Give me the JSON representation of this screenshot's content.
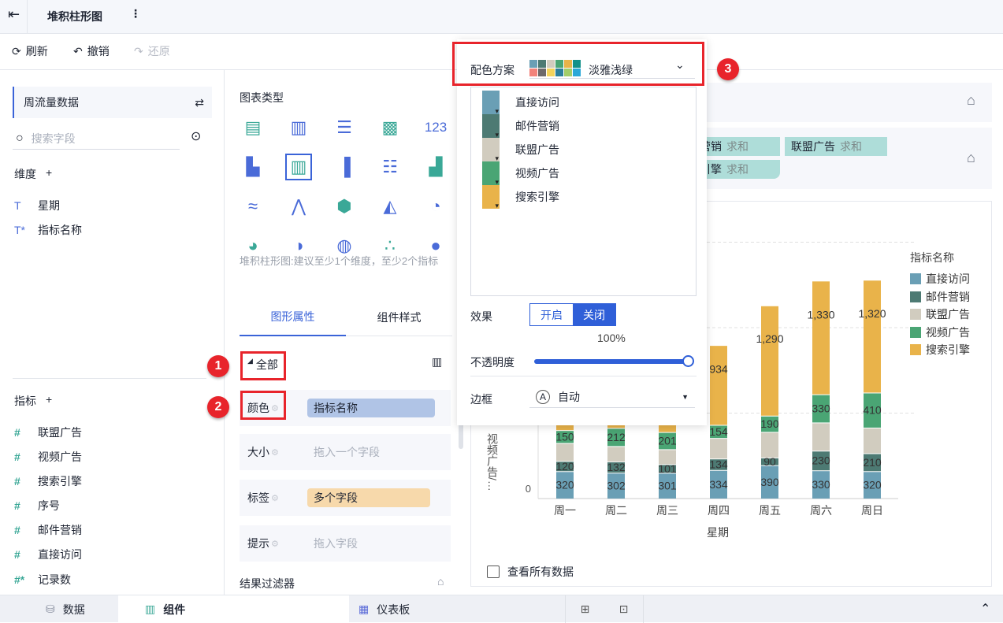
{
  "header": {
    "title": "堆积柱形图"
  },
  "toolbar": {
    "refresh": "刷新",
    "undo": "撤销",
    "redo": "还原"
  },
  "left": {
    "dataset": "周流量数据",
    "search_placeholder": "搜索字段",
    "dimensions_label": "维度",
    "dimensions": [
      "星期",
      "指标名称"
    ],
    "measures_label": "指标",
    "measures": [
      "联盟广告",
      "视频广告",
      "搜索引擎",
      "序号",
      "邮件营销",
      "直接访问",
      "记录数"
    ]
  },
  "middle": {
    "chart_type_label": "图表类型",
    "hint": "堆积柱形图:建议至少1个维度，至少2个指标",
    "tabs": [
      "图形属性",
      "组件样式"
    ],
    "all_label": "全部",
    "rows": [
      {
        "label": "颜色",
        "value": "指标名称"
      },
      {
        "label": "大小",
        "placeholder": "拖入一个字段"
      },
      {
        "label": "标签",
        "value": "多个字段"
      },
      {
        "label": "提示",
        "placeholder": "拖入字段"
      }
    ],
    "filter_label": "结果过滤器"
  },
  "badges": [
    "1",
    "2",
    "3"
  ],
  "axis_chips": [
    {
      "name": "营销",
      "agg": "求和"
    },
    {
      "name": "联盟广告",
      "agg": "求和"
    },
    {
      "name": "引擎",
      "agg": "求和"
    }
  ],
  "popup": {
    "scheme_label": "配色方案",
    "scheme_value": "淡雅浅绿",
    "scheme_colors": [
      "#6a9fb5",
      "#4d7a73",
      "#d1ccbf",
      "#4aa574",
      "#e9b34a",
      "#14918a",
      "#f2837b",
      "#6e6a6b",
      "#f3d35c",
      "#2b7f9c",
      "#a2cd69",
      "#2aa8d8"
    ],
    "items": [
      "直接访问",
      "邮件营销",
      "联盟广告",
      "视频广告",
      "搜索引擎"
    ],
    "effect_label": "效果",
    "effect_on": "开启",
    "effect_off": "关闭",
    "effect_selected": "关闭",
    "opacity_label": "不透明度",
    "opacity_value": "100%",
    "opacity": 1.0,
    "border_label": "边框",
    "border_value": "自动"
  },
  "chart_data": {
    "type": "bar",
    "stacked": true,
    "categories": [
      "周一",
      "周二",
      "周三",
      "周四",
      "周五",
      "周六",
      "周日"
    ],
    "series": [
      {
        "name": "直接访问",
        "color": "#6a9fb5",
        "values": [
          320,
          302,
          301,
          334,
          390,
          330,
          320
        ]
      },
      {
        "name": "邮件营销",
        "color": "#4d7a73",
        "values": [
          120,
          132,
          101,
          134,
          90,
          230,
          210
        ]
      },
      {
        "name": "联盟广告",
        "color": "#d1ccbf",
        "values": [
          210,
          180,
          175,
          240,
          300,
          330,
          300
        ]
      },
      {
        "name": "视频广告",
        "color": "#4aa574",
        "values": [
          150,
          212,
          201,
          154,
          190,
          330,
          410
        ]
      },
      {
        "name": "搜索引擎",
        "color": "#e9b34a",
        "values": [
          820,
          900,
          900,
          934,
          1290,
          1330,
          1320
        ]
      }
    ],
    "hidden_labels": [
      "联盟广告"
    ],
    "xlabel": "星期",
    "ylabel": "视频广告/…",
    "yticks": [
      "0"
    ],
    "ylim": [
      0,
      3000
    ],
    "grid": true,
    "legend_title": "指标名称",
    "legend_position": "right"
  },
  "chart_footer": {
    "view_all": "查看所有数据"
  },
  "bottom": {
    "tabs": [
      "数据",
      "组件",
      "仪表板"
    ]
  }
}
